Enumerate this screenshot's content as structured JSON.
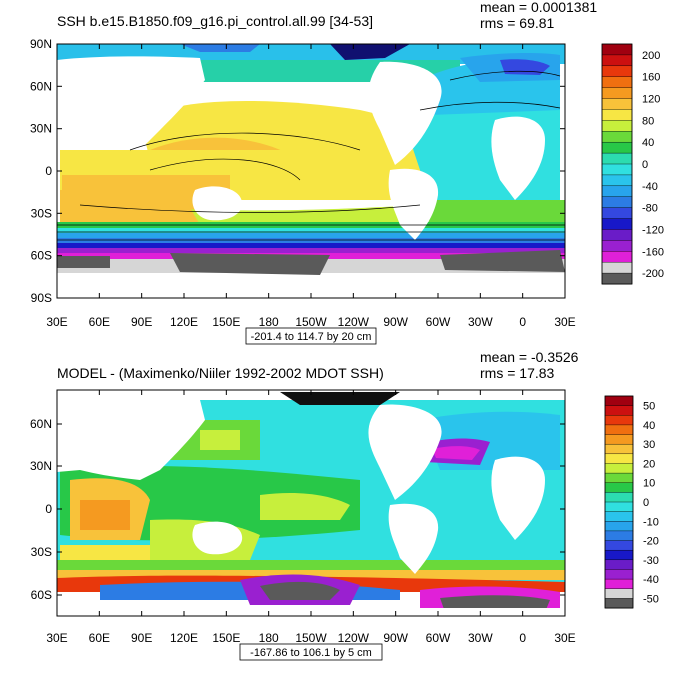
{
  "chart_data": [
    {
      "type": "heatmap",
      "title": "SSH b.e15.B1850.f09_g16.pi_control.all.99 [34-53]",
      "stats": {
        "mean": "mean = 0.0001381",
        "rms": "rms = 69.81"
      },
      "range_label": "-201.4 to 114.7 by 20 cm",
      "x_ticks": [
        "30E",
        "60E",
        "90E",
        "120E",
        "150E",
        "180",
        "150W",
        "120W",
        "90W",
        "60W",
        "30W",
        "0",
        "30E"
      ],
      "y_ticks": [
        "90N",
        "60N",
        "30N",
        "0",
        "30S",
        "60S",
        "90S"
      ],
      "colorbar": {
        "labels": [
          "200",
          "160",
          "120",
          "80",
          "40",
          "0",
          "-40",
          "-80",
          "-120",
          "-160",
          "-200"
        ],
        "colors": [
          "#a00010",
          "#cc1010",
          "#e8380c",
          "#f06f10",
          "#f59a20",
          "#f8c23a",
          "#f7e644",
          "#c7ef3c",
          "#6ad93a",
          "#28c848",
          "#2cdcb0",
          "#30e0e0",
          "#2ac4ec",
          "#28a4ec",
          "#2c7ce4",
          "#3448e0",
          "#1818c8",
          "#6a1cc8",
          "#9a20d0",
          "#e020d8",
          "#d6d6d6",
          "#5a5a5a"
        ]
      }
    },
    {
      "type": "heatmap",
      "title": "MODEL - (Maximenko/Niiler 1992-2002 MDOT SSH)",
      "stats": {
        "mean": "mean = -0.3526",
        "rms": "rms = 17.83"
      },
      "range_label": "-167.86 to 106.1 by 5 cm",
      "x_ticks": [
        "30E",
        "60E",
        "90E",
        "120E",
        "150E",
        "180",
        "150W",
        "120W",
        "90W",
        "60W",
        "30W",
        "0",
        "30E"
      ],
      "y_ticks": [
        "60N",
        "30N",
        "0",
        "30S",
        "60S"
      ],
      "colorbar": {
        "labels": [
          "50",
          "40",
          "30",
          "20",
          "10",
          "0",
          "-10",
          "-20",
          "-30",
          "-40",
          "-50"
        ],
        "colors": [
          "#a00010",
          "#cc1010",
          "#e8380c",
          "#f06f10",
          "#f59a20",
          "#f8c23a",
          "#f7e644",
          "#c7ef3c",
          "#6ad93a",
          "#28c848",
          "#2cdcb0",
          "#30e0e0",
          "#2ac4ec",
          "#28a4ec",
          "#2c7ce4",
          "#3448e0",
          "#1818c8",
          "#6a1cc8",
          "#9a20d0",
          "#e020d8",
          "#d6d6d6",
          "#5a5a5a"
        ]
      }
    }
  ]
}
